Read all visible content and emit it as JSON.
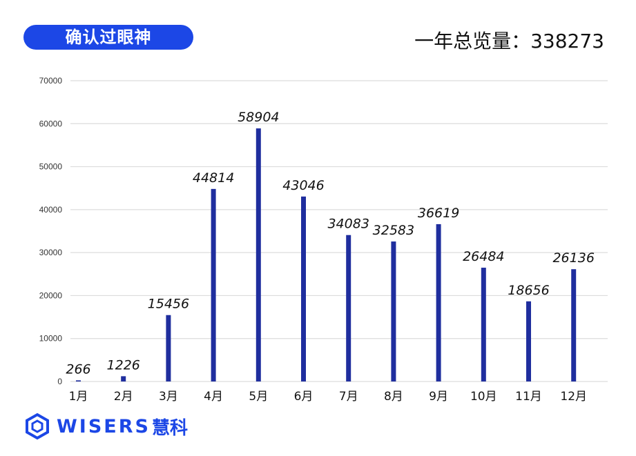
{
  "header": {
    "badge_label": "确认过眼神",
    "total_text": "一年总览量：338273"
  },
  "colors": {
    "bar": "#1f2e9e",
    "accent": "#1c47e6",
    "grid": "#dcdcdc"
  },
  "logo": {
    "word": "WISERS",
    "cn": "慧科",
    "icon": "hexagon-logo-icon"
  },
  "chart_data": {
    "type": "bar",
    "title": "",
    "xlabel": "",
    "ylabel": "",
    "categories": [
      "1月",
      "2月",
      "3月",
      "4月",
      "5月",
      "6月",
      "7月",
      "8月",
      "9月",
      "10月",
      "11月",
      "12月"
    ],
    "values": [
      266,
      1226,
      15456,
      44814,
      58904,
      43046,
      34083,
      32583,
      36619,
      26484,
      18656,
      26136
    ],
    "ylim": [
      0,
      70000
    ],
    "yticks": [
      0,
      10000,
      20000,
      30000,
      40000,
      50000,
      60000,
      70000
    ],
    "grid": true,
    "legend": "none"
  }
}
